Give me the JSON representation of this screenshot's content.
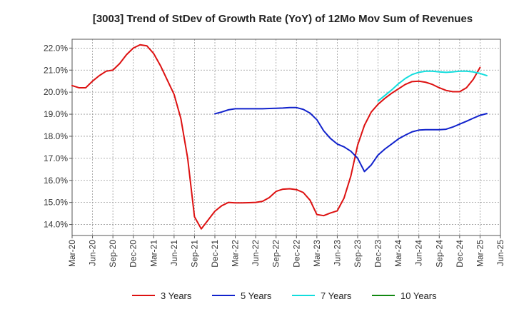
{
  "chart_data": {
    "type": "line",
    "title": "[3003]  Trend of StDev of Growth Rate (YoY) of 12Mo Mov Sum of Revenues",
    "xlabel": "",
    "ylabel": "",
    "ylim": [
      13.5,
      22.4
    ],
    "yticks": [
      14.0,
      15.0,
      16.0,
      17.0,
      18.0,
      19.0,
      20.0,
      21.0,
      22.0
    ],
    "ytick_labels": [
      "14.0%",
      "15.0%",
      "16.0%",
      "17.0%",
      "18.0%",
      "19.0%",
      "20.0%",
      "21.0%",
      "22.0%"
    ],
    "xticks": [
      "Mar-20",
      "Jun-20",
      "Sep-20",
      "Dec-20",
      "Mar-21",
      "Jun-21",
      "Sep-21",
      "Dec-21",
      "Mar-22",
      "Jun-22",
      "Sep-22",
      "Dec-22",
      "Mar-23",
      "Jun-23",
      "Sep-23",
      "Dec-23",
      "Mar-24",
      "Jun-24",
      "Sep-24",
      "Dec-24",
      "Mar-25",
      "Jun-25"
    ],
    "grid": true,
    "legend_position": "bottom",
    "series": [
      {
        "name": "3 Years",
        "color": "#dd1111",
        "start_index": 0,
        "values": [
          20.3,
          20.2,
          20.2,
          20.5,
          20.75,
          20.95,
          21.0,
          21.3,
          21.7,
          22.0,
          22.15,
          22.1,
          21.75,
          21.2,
          20.55,
          19.9,
          18.8,
          17.0,
          14.35,
          13.8,
          14.2,
          14.6,
          14.85,
          15.0,
          14.98,
          14.98,
          14.99,
          15.0,
          15.05,
          15.22,
          15.5,
          15.6,
          15.62,
          15.58,
          15.45,
          15.1,
          14.45,
          14.4,
          14.52,
          14.62,
          15.2,
          16.2,
          17.6,
          18.5,
          19.1,
          19.45,
          19.72,
          19.95,
          20.15,
          20.35,
          20.48,
          20.5,
          20.45,
          20.35,
          20.2,
          20.08,
          20.02,
          20.02,
          20.2,
          20.58,
          21.12
        ]
      },
      {
        "name": "5 Years",
        "color": "#1122cc",
        "start_index": 21,
        "values": [
          19.02,
          19.1,
          19.2,
          19.25,
          19.25,
          19.25,
          19.25,
          19.25,
          19.26,
          19.27,
          19.28,
          19.3,
          19.3,
          19.22,
          19.05,
          18.75,
          18.25,
          17.9,
          17.65,
          17.52,
          17.32,
          17.0,
          16.4,
          16.7,
          17.15,
          17.42,
          17.65,
          17.88,
          18.05,
          18.2,
          18.28,
          18.3,
          18.3,
          18.3,
          18.32,
          18.42,
          18.55,
          18.68,
          18.82,
          18.95,
          19.03
        ]
      },
      {
        "name": "7 Years",
        "color": "#11dddd",
        "start_index": 45,
        "values": [
          19.6,
          19.85,
          20.1,
          20.38,
          20.62,
          20.8,
          20.9,
          20.95,
          20.95,
          20.92,
          20.9,
          20.92,
          20.95,
          20.95,
          20.92,
          20.85,
          20.75
        ]
      },
      {
        "name": "10 Years",
        "color": "#118811",
        "start_index": 0,
        "values": []
      }
    ]
  }
}
